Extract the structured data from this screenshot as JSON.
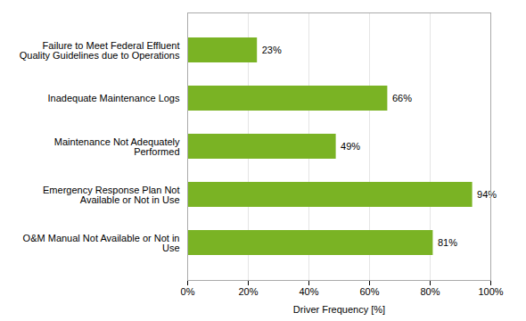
{
  "chart_data": {
    "type": "bar",
    "orientation": "horizontal",
    "categories": [
      "O&M Manual Not Available or Not in\nUse",
      "Emergency Response Plan Not\nAvailable or Not in Use",
      "Maintenance Not Adequately\nPerformed",
      "Inadequate Maintenance Logs",
      "Failure to Meet Federal Effluent\nQuality Guidelines due to Operations"
    ],
    "values": [
      81,
      94,
      49,
      66,
      23
    ],
    "value_labels": [
      "81%",
      "94%",
      "49%",
      "66%",
      "23%"
    ],
    "data_labels": true,
    "color": "#7ab324",
    "xlabel": "Driver Frequency [%]",
    "xlim": [
      0,
      100
    ],
    "xticks": [
      {
        "value": 0,
        "label": "0%"
      },
      {
        "value": 20,
        "label": "20%"
      },
      {
        "value": 40,
        "label": "40%"
      },
      {
        "value": 60,
        "label": "60%"
      },
      {
        "value": 80,
        "label": "80%"
      },
      {
        "value": 100,
        "label": "100%"
      }
    ],
    "grid": true
  }
}
